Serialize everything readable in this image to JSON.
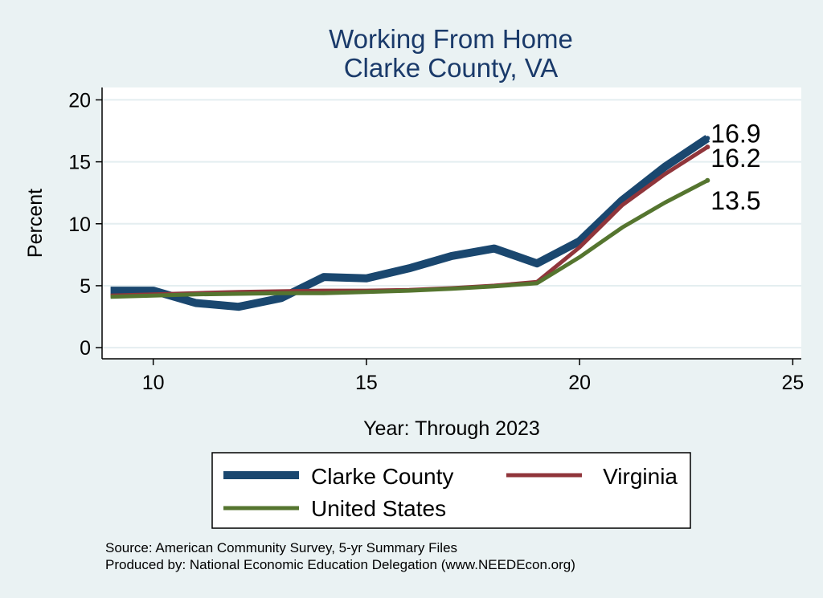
{
  "chart_data": {
    "type": "line",
    "title": [
      "Working From Home",
      "Clarke County, VA"
    ],
    "xlabel": "Year: Through 2023",
    "ylabel": "Percent",
    "xlim": [
      8.8,
      25.2
    ],
    "ylim": [
      -0.9,
      21
    ],
    "xticks": [
      10,
      15,
      20,
      25
    ],
    "yticks": [
      0,
      5,
      10,
      15,
      20
    ],
    "grid": true,
    "legend_position": "bottom",
    "x": [
      9,
      10,
      11,
      12,
      13,
      14,
      15,
      16,
      17,
      18,
      19,
      20,
      21,
      22,
      23
    ],
    "series": [
      {
        "name": "Clarke County",
        "color": "#1a476f",
        "values": [
          4.6,
          4.6,
          3.6,
          3.3,
          4.0,
          5.7,
          5.6,
          6.4,
          7.4,
          8.0,
          6.8,
          8.6,
          11.9,
          14.6,
          16.9
        ],
        "end_label": "16.9"
      },
      {
        "name": "Virginia",
        "color": "#90353b",
        "values": [
          4.2,
          4.3,
          4.4,
          4.5,
          4.55,
          4.6,
          4.6,
          4.65,
          4.8,
          5.0,
          5.3,
          8.1,
          11.5,
          14.0,
          16.2
        ],
        "end_label": "16.2"
      },
      {
        "name": "United States",
        "color": "#55752f",
        "values": [
          4.1,
          4.2,
          4.3,
          4.35,
          4.4,
          4.4,
          4.5,
          4.6,
          4.75,
          4.95,
          5.2,
          7.3,
          9.7,
          11.7,
          13.5
        ],
        "end_label": "13.5"
      }
    ],
    "source_note": "Source: American Community Survey, 5-yr Summary Files",
    "produced_note": "Produced by: National Economic Education Delegation (www.NEEDEcon.org)"
  }
}
